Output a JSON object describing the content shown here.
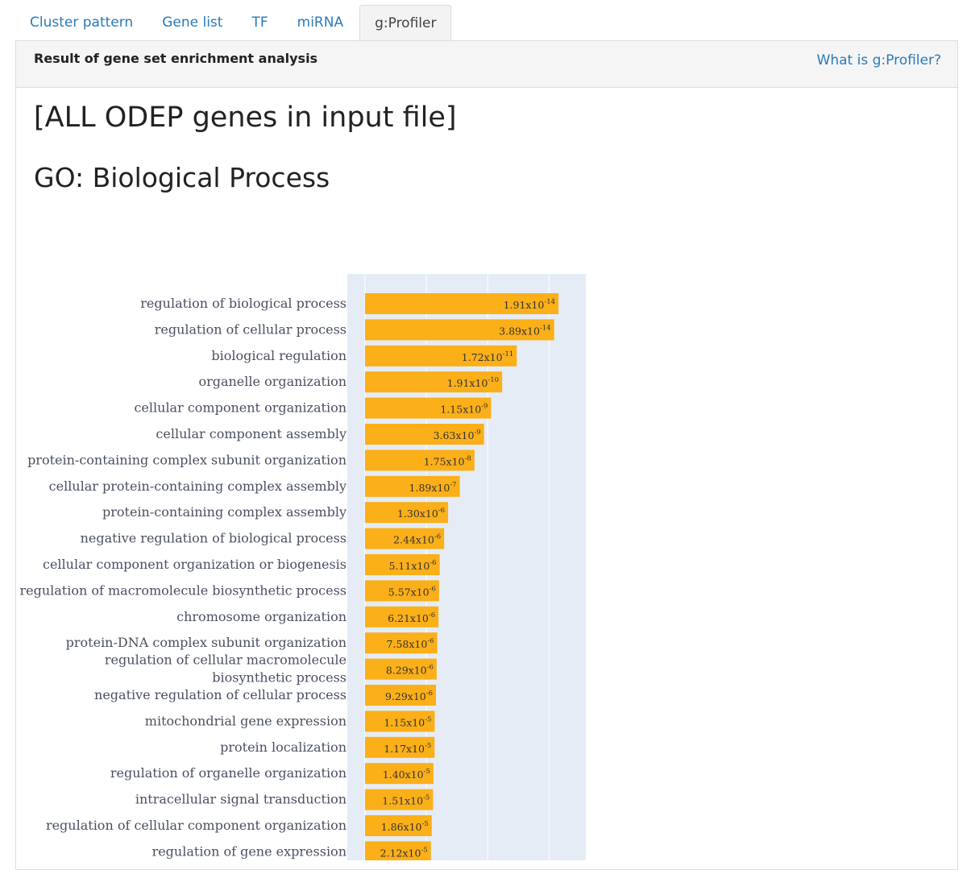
{
  "tabs": [
    {
      "label": "Cluster pattern",
      "active": false
    },
    {
      "label": "Gene list",
      "active": false
    },
    {
      "label": "TF",
      "active": false
    },
    {
      "label": "miRNA",
      "active": false
    },
    {
      "label": "g:Profiler",
      "active": true
    }
  ],
  "panel": {
    "title": "Result of gene set enrichment analysis",
    "help_link": "What is g:Profiler?"
  },
  "headings": {
    "main": "[ALL ODEP genes in input file]",
    "sub": "GO: Biological Process"
  },
  "colors": {
    "bar": "#FBAF18",
    "plot_bg": "#E5ECF6",
    "link": "#2A7AB8"
  },
  "chart_data": {
    "type": "bar",
    "orientation": "horizontal",
    "value_unit": "-log10(p-value)",
    "categories": [
      "regulation of biological process",
      "regulation of cellular process",
      "biological regulation",
      "organelle organization",
      "cellular component organization",
      "cellular component assembly",
      "protein-containing complex subunit organization",
      "cellular protein-containing complex assembly",
      "protein-containing complex assembly",
      "negative regulation of biological process",
      "cellular component organization or biogenesis",
      "regulation of macromolecule biosynthetic process",
      "chromosome organization",
      "protein-DNA complex subunit organization",
      "regulation of cellular macromolecule biosynthetic process",
      "negative regulation of cellular process",
      "mitochondrial gene expression",
      "protein localization",
      "regulation of organelle organization",
      "intracellular signal transduction",
      "regulation of cellular component organization",
      "regulation of gene expression"
    ],
    "label_lines": [
      [
        "regulation of biological process"
      ],
      [
        "regulation of cellular process"
      ],
      [
        "biological regulation"
      ],
      [
        "organelle organization"
      ],
      [
        "cellular component organization"
      ],
      [
        "cellular component assembly"
      ],
      [
        "protein-containing complex subunit organization"
      ],
      [
        "cellular protein-containing complex assembly"
      ],
      [
        "protein-containing complex assembly"
      ],
      [
        "negative regulation of biological process"
      ],
      [
        "cellular component organization or biogenesis"
      ],
      [
        "regulation of macromolecule biosynthetic process"
      ],
      [
        "chromosome organization"
      ],
      [
        "protein-DNA complex subunit organization"
      ],
      [
        "regulation of cellular macromolecule",
        "biosynthetic process"
      ],
      [
        "negative regulation of cellular process"
      ],
      [
        "mitochondrial gene expression"
      ],
      [
        "protein localization"
      ],
      [
        "regulation of organelle organization"
      ],
      [
        "intracellular signal transduction"
      ],
      [
        "regulation of cellular component organization"
      ],
      [
        "regulation of gene expression"
      ]
    ],
    "p_values": [
      {
        "mant": "1.91",
        "exp": "-14"
      },
      {
        "mant": "3.89",
        "exp": "-14"
      },
      {
        "mant": "1.72",
        "exp": "-11"
      },
      {
        "mant": "1.91",
        "exp": "-10"
      },
      {
        "mant": "1.15",
        "exp": "-9"
      },
      {
        "mant": "3.63",
        "exp": "-9"
      },
      {
        "mant": "1.75",
        "exp": "-8"
      },
      {
        "mant": "1.89",
        "exp": "-7"
      },
      {
        "mant": "1.30",
        "exp": "-6"
      },
      {
        "mant": "2.44",
        "exp": "-6"
      },
      {
        "mant": "5.11",
        "exp": "-6"
      },
      {
        "mant": "5.57",
        "exp": "-6"
      },
      {
        "mant": "6.21",
        "exp": "-6"
      },
      {
        "mant": "7.58",
        "exp": "-6"
      },
      {
        "mant": "8.29",
        "exp": "-6"
      },
      {
        "mant": "9.29",
        "exp": "-6"
      },
      {
        "mant": "1.15",
        "exp": "-5"
      },
      {
        "mant": "1.17",
        "exp": "-5"
      },
      {
        "mant": "1.40",
        "exp": "-5"
      },
      {
        "mant": "1.51",
        "exp": "-5"
      },
      {
        "mant": "1.86",
        "exp": "-5"
      },
      {
        "mant": "2.12",
        "exp": "-5"
      }
    ],
    "values": [
      13.72,
      13.41,
      10.76,
      9.72,
      8.94,
      8.44,
      7.76,
      6.72,
      5.89,
      5.61,
      5.29,
      5.25,
      5.21,
      5.12,
      5.08,
      5.03,
      4.94,
      4.93,
      4.85,
      4.82,
      4.73,
      4.67
    ],
    "xlim": [
      0,
      15.5
    ],
    "grid": true
  }
}
